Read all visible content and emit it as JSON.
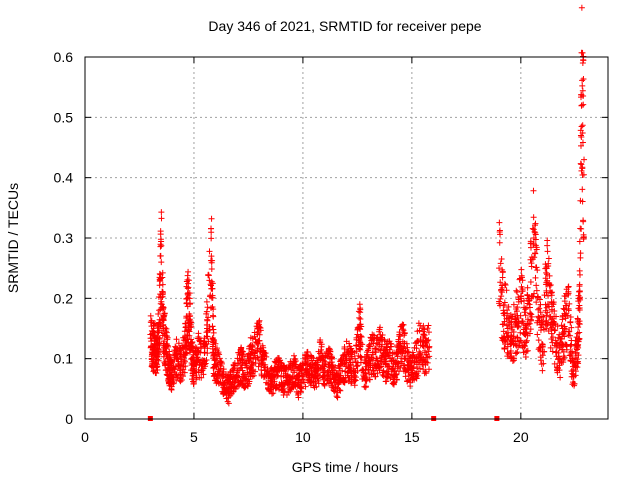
{
  "chart_data": {
    "type": "scatter",
    "title": "Day 346 of 2021, SRMTID for receiver pepe",
    "xlabel": "GPS time / hours",
    "ylabel": "SRMTID / TECUs",
    "xlim": [
      0,
      24
    ],
    "ylim": [
      0,
      0.6
    ],
    "xticks": [
      0,
      5,
      10,
      15,
      20
    ],
    "xtick_labels": [
      "0",
      "5",
      "10",
      "15",
      "20"
    ],
    "yticks": [
      0,
      0.1,
      0.2,
      0.3,
      0.4,
      0.5,
      0.6
    ],
    "ytick_labels": [
      "0",
      "0.1",
      "0.2",
      "0.3",
      "0.4",
      "0.5",
      "0.6"
    ],
    "grid": true,
    "marker": "+",
    "color": "#ff0000",
    "series": [
      {
        "name": "SRMTID",
        "segments_note": "dense sampled data; key points listed",
        "x": [
          3.0,
          3.1,
          3.2,
          3.3,
          3.4,
          3.5,
          3.6,
          3.7,
          3.8,
          3.9,
          4.0,
          4.2,
          4.4,
          4.6,
          4.7,
          4.8,
          4.9,
          5.0,
          5.2,
          5.4,
          5.6,
          5.8,
          5.9,
          6.0,
          6.2,
          6.4,
          6.6,
          6.8,
          7.0,
          7.2,
          7.4,
          7.6,
          7.8,
          8.0,
          8.2,
          8.4,
          8.6,
          8.8,
          9.0,
          9.2,
          9.4,
          9.6,
          9.8,
          10.0,
          10.2,
          10.4,
          10.6,
          10.8,
          11.0,
          11.2,
          11.4,
          11.6,
          11.8,
          12.0,
          12.2,
          12.4,
          12.6,
          12.8,
          13.0,
          13.2,
          13.4,
          13.6,
          13.8,
          14.0,
          14.2,
          14.4,
          14.6,
          14.8,
          15.0,
          15.2,
          15.4,
          15.6,
          15.8,
          18.9,
          19.0,
          19.2,
          19.4,
          19.6,
          19.8,
          20.0,
          20.2,
          20.4,
          20.6,
          20.8,
          21.0,
          21.2,
          21.4,
          21.6,
          21.8,
          22.0,
          22.2,
          22.4,
          22.6,
          22.7,
          22.8,
          22.9
        ],
        "values": [
          0.14,
          0.11,
          0.13,
          0.09,
          0.16,
          0.26,
          0.15,
          0.12,
          0.1,
          0.08,
          0.07,
          0.1,
          0.09,
          0.12,
          0.2,
          0.17,
          0.1,
          0.08,
          0.11,
          0.09,
          0.15,
          0.27,
          0.11,
          0.09,
          0.08,
          0.06,
          0.05,
          0.07,
          0.08,
          0.09,
          0.07,
          0.1,
          0.11,
          0.13,
          0.09,
          0.07,
          0.06,
          0.08,
          0.07,
          0.06,
          0.07,
          0.08,
          0.06,
          0.07,
          0.09,
          0.08,
          0.07,
          0.1,
          0.08,
          0.09,
          0.07,
          0.06,
          0.08,
          0.1,
          0.09,
          0.08,
          0.15,
          0.07,
          0.09,
          0.11,
          0.1,
          0.12,
          0.09,
          0.1,
          0.08,
          0.11,
          0.12,
          0.09,
          0.08,
          0.1,
          0.13,
          0.11,
          0.12,
          0.0,
          0.25,
          0.18,
          0.15,
          0.13,
          0.16,
          0.2,
          0.14,
          0.19,
          0.3,
          0.17,
          0.12,
          0.24,
          0.16,
          0.13,
          0.1,
          0.15,
          0.18,
          0.07,
          0.12,
          0.2,
          0.52,
          0.43
        ]
      }
    ],
    "zero_markers_x": [
      3.0,
      16.0,
      18.9
    ],
    "annotations": []
  }
}
